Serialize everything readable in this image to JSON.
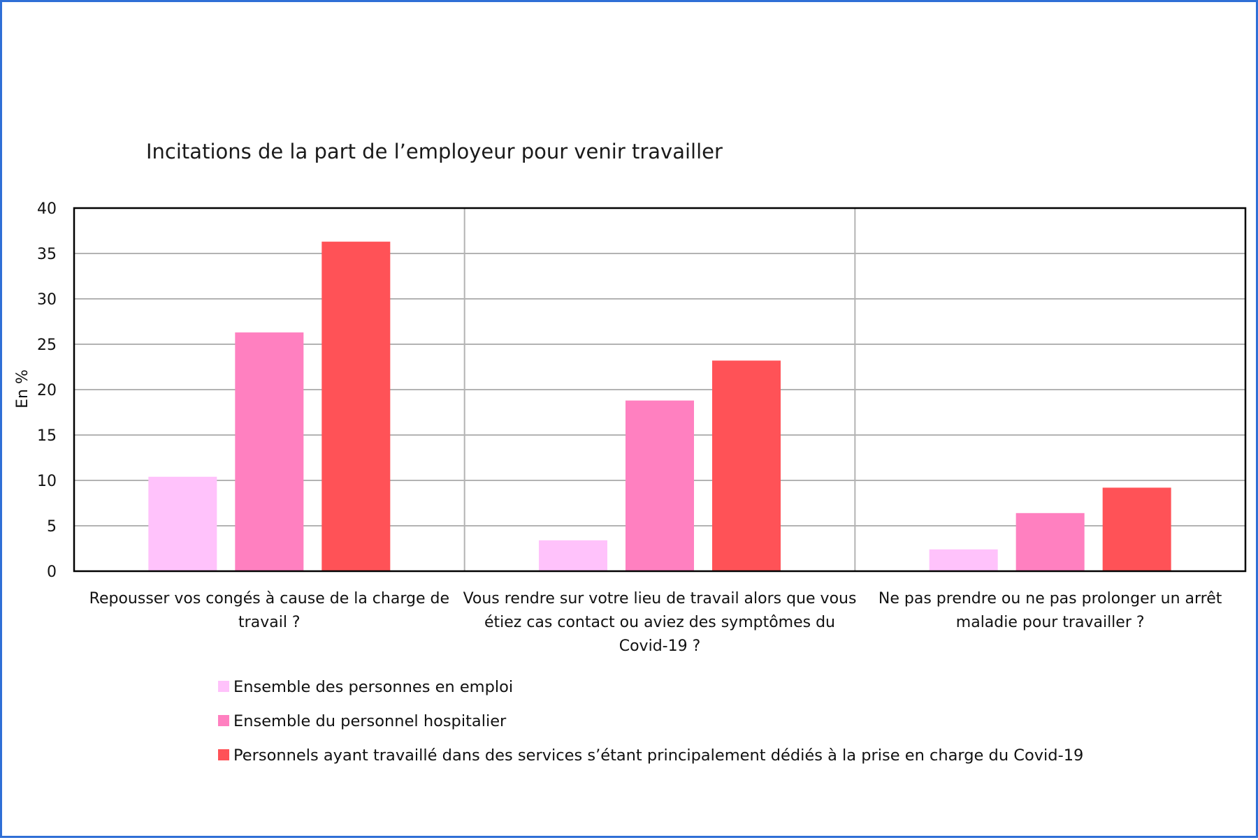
{
  "chart_data": {
    "type": "bar",
    "title": "Incitations de la part de l’employeur pour venir travailler",
    "ylabel": "En %",
    "xlabel": "",
    "ylim": [
      0,
      40
    ],
    "yticks": [
      0,
      5,
      10,
      15,
      20,
      25,
      30,
      35,
      40
    ],
    "grid": true,
    "legend_position": "bottom",
    "categories": [
      [
        "Repousser vos congés à cause de la charge de",
        "travail ?"
      ],
      [
        "Vous rendre sur votre lieu de travail alors que vous",
        "étiez cas contact ou aviez des symptômes du",
        "Covid-19 ?"
      ],
      [
        "Ne pas prendre ou ne pas prolonger un arrêt",
        "maladie pour travailler ?"
      ]
    ],
    "series": [
      {
        "name": "Ensemble des personnes en emploi",
        "color": "#ffc2fb",
        "values": [
          10.4,
          3.4,
          2.4
        ]
      },
      {
        "name": "Ensemble du personnel hospitalier",
        "color": "#ff80c0",
        "values": [
          26.3,
          18.8,
          6.4
        ]
      },
      {
        "name": "Personnels ayant travaillé dans des services s’étant principalement dédiés à la prise en charge du Covid-19",
        "color": "#ff5257",
        "values": [
          36.3,
          23.2,
          9.2
        ]
      }
    ]
  }
}
